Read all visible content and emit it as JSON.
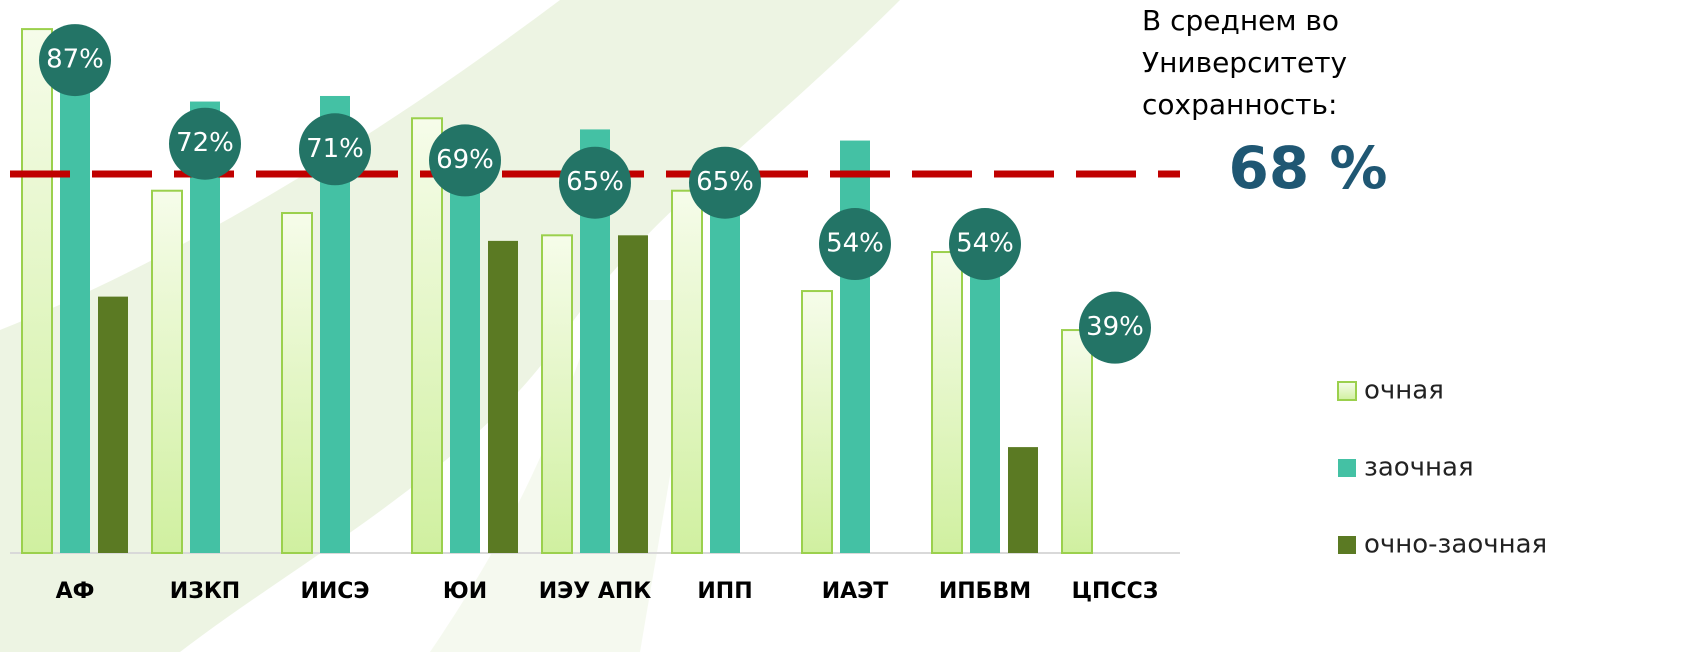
{
  "chart_data": {
    "type": "bar",
    "categories": [
      "АФ",
      "ИЗКП",
      "ИИСЭ",
      "ЮИ",
      "ИЭУ АПК",
      "ИПП",
      "ИАЭТ",
      "ИПБВМ",
      "ЦПССЗ"
    ],
    "series": [
      {
        "name": "очная",
        "color": "#d4f0a8",
        "values": [
          94,
          65,
          61,
          78,
          57,
          65,
          47,
          54,
          40
        ]
      },
      {
        "name": "заочная",
        "color": "#44c1a4",
        "values": [
          88,
          81,
          82,
          72,
          76,
          66,
          74,
          53,
          null
        ]
      },
      {
        "name": "очно-заочная",
        "color": "#5b7a23",
        "values": [
          46,
          null,
          null,
          56,
          57,
          null,
          null,
          19,
          null
        ]
      }
    ],
    "totals": {
      "color": "#237466",
      "values": [
        87,
        72,
        71,
        69,
        65,
        65,
        54,
        54,
        39
      ],
      "value_labels": [
        "87%",
        "72%",
        "71%",
        "69%",
        "65%",
        "65%",
        "54%",
        "54%",
        "39%"
      ]
    },
    "average": {
      "text": [
        "В среднем во",
        "Университету",
        "сохранность:"
      ],
      "value": 68,
      "label": "68 %",
      "color": "#c00000"
    }
  }
}
